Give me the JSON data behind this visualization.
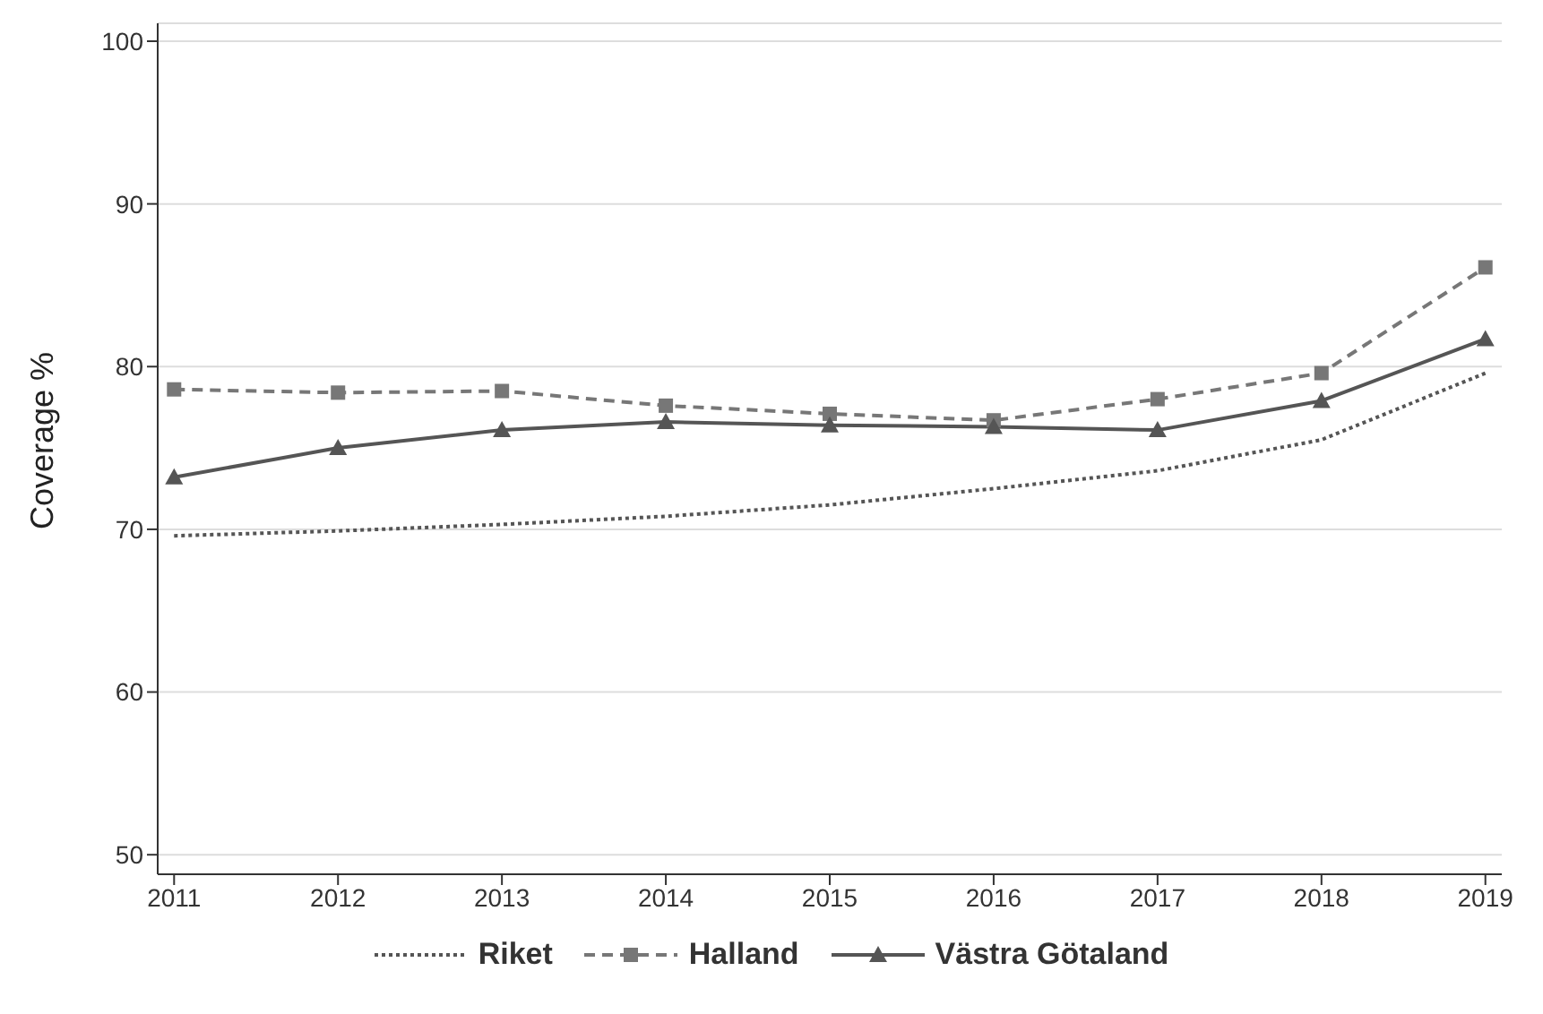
{
  "chart_data": {
    "type": "line",
    "ylabel": "Coverage %",
    "x": [
      2011,
      2012,
      2013,
      2014,
      2015,
      2016,
      2017,
      2018,
      2019
    ],
    "xlim": [
      2010.9,
      2019.1
    ],
    "xticks": [
      2011,
      2012,
      2013,
      2014,
      2015,
      2016,
      2017,
      2018,
      2019
    ],
    "ylim": [
      48.8,
      101.1
    ],
    "yticks": [
      50,
      60,
      70,
      80,
      90,
      100
    ],
    "grid": "y",
    "legend": "bottom",
    "series": [
      {
        "name": "Riket",
        "color": "#555555",
        "line_style": "dotted",
        "marker": "none",
        "values": [
          69.6,
          69.9,
          70.3,
          70.8,
          71.5,
          72.5,
          73.6,
          75.5,
          79.6
        ]
      },
      {
        "name": "Halland",
        "color": "#777777",
        "line_style": "dashed",
        "marker": "square",
        "values": [
          78.6,
          78.4,
          78.5,
          77.6,
          77.1,
          76.7,
          78.0,
          79.6,
          86.1
        ]
      },
      {
        "name": "Västra Götaland",
        "color": "#555555",
        "line_style": "solid",
        "marker": "triangle",
        "values": [
          73.2,
          75.0,
          76.1,
          76.6,
          76.4,
          76.3,
          76.1,
          77.9,
          81.7
        ]
      }
    ]
  }
}
